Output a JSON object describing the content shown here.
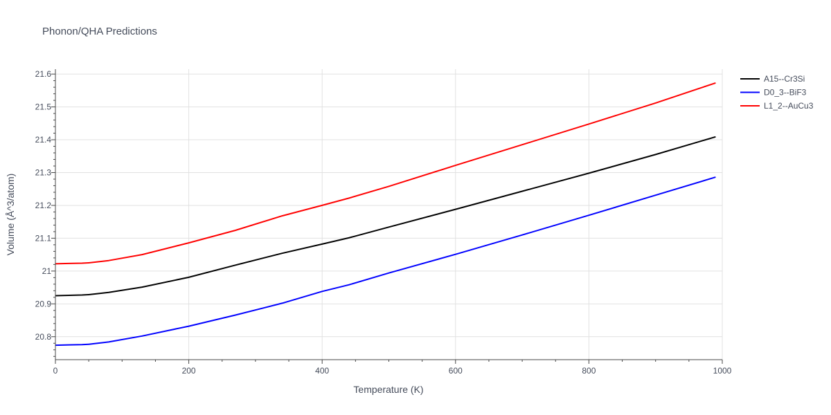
{
  "chart_data": {
    "type": "line",
    "title": "Phonon/QHA Predictions",
    "xlabel": "Temperature (K)",
    "ylabel": "Volume (Å^3/atom)",
    "xlim": [
      0,
      1000
    ],
    "ylim": [
      20.73,
      21.615
    ],
    "x_ticks": [
      "0",
      "200",
      "400",
      "600",
      "800",
      "1000"
    ],
    "y_ticks": [
      "20.8",
      "20.9",
      "21",
      "21.1",
      "21.2",
      "21.3",
      "21.4",
      "21.5",
      "21.6"
    ],
    "grid": true,
    "legend_position": "top-right",
    "series": [
      {
        "name": "A15--Cr3Si",
        "color": "#000000",
        "x": [
          0,
          20,
          40,
          50,
          80,
          130,
          200,
          270,
          340,
          400,
          440,
          500,
          600,
          700,
          800,
          900,
          990
        ],
        "y": [
          20.925,
          20.926,
          20.927,
          20.928,
          20.935,
          20.951,
          20.981,
          21.018,
          21.054,
          21.082,
          21.101,
          21.134,
          21.188,
          21.243,
          21.298,
          21.355,
          21.409
        ]
      },
      {
        "name": "D0_3--BiF3",
        "color": "#0000ff",
        "x": [
          0,
          20,
          40,
          50,
          80,
          130,
          200,
          270,
          340,
          400,
          440,
          500,
          600,
          700,
          800,
          900,
          990
        ],
        "y": [
          20.774,
          20.775,
          20.776,
          20.777,
          20.784,
          20.802,
          20.832,
          20.866,
          20.902,
          20.938,
          20.958,
          20.994,
          21.051,
          21.11,
          21.17,
          21.231,
          21.286
        ]
      },
      {
        "name": "L1_2--AuCu3",
        "color": "#ff0000",
        "x": [
          0,
          20,
          40,
          50,
          80,
          130,
          200,
          270,
          340,
          400,
          440,
          500,
          600,
          700,
          800,
          900,
          990
        ],
        "y": [
          21.022,
          21.023,
          21.024,
          21.025,
          21.032,
          21.05,
          21.086,
          21.124,
          21.168,
          21.2,
          21.222,
          21.258,
          21.322,
          21.385,
          21.448,
          21.512,
          21.573
        ]
      }
    ]
  }
}
